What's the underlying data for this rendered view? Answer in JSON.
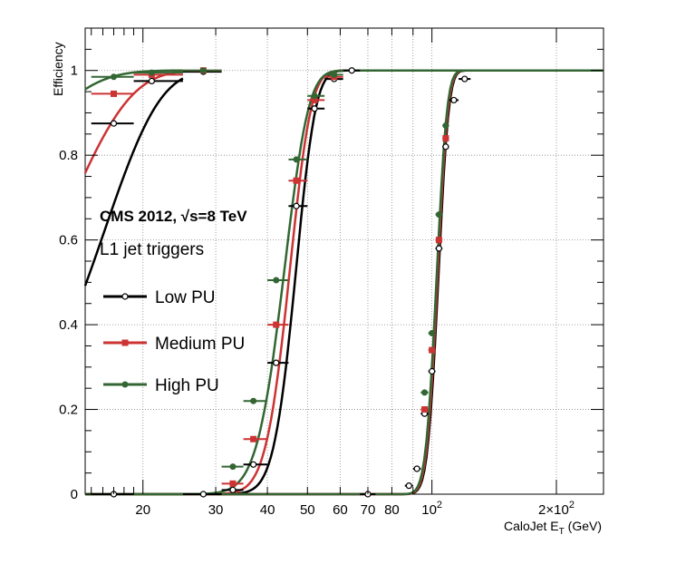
{
  "chart_data": {
    "type": "line",
    "xscale": "log",
    "xlim": [
      14.5,
      260
    ],
    "ylim": [
      0,
      1.1
    ],
    "grid": true,
    "legend_position": "left-center",
    "xlabel": "CaloJet E",
    "xlabel_sub": "T",
    "xlabel_unit": " (GeV)",
    "ylabel": "Efficiency",
    "experiment_label": "CMS 2012, √s=8 TeV",
    "annotation": "L1 jet triggers",
    "x_ticks": [
      {
        "value": 20,
        "label": "20"
      },
      {
        "value": 30,
        "label": "30"
      },
      {
        "value": 40,
        "label": "40"
      },
      {
        "value": 50,
        "label": "50"
      },
      {
        "value": 60,
        "label": "60"
      },
      {
        "value": 70,
        "label": "70"
      },
      {
        "value": 80,
        "label": "80"
      },
      {
        "value": 100,
        "label": "10",
        "sup": "2"
      },
      {
        "value": 200,
        "label": "2×10",
        "sup": "2"
      }
    ],
    "y_ticks": [
      {
        "value": 0,
        "label": "0"
      },
      {
        "value": 0.2,
        "label": "0.2"
      },
      {
        "value": 0.4,
        "label": "0.4"
      },
      {
        "value": 0.6,
        "label": "0.6"
      },
      {
        "value": 0.8,
        "label": "0.8"
      },
      {
        "value": 1,
        "label": "1"
      }
    ],
    "series": [
      {
        "name": "Low PU",
        "color": "#000000",
        "marker": "open-circle",
        "turn_on_curves": [
          {
            "a": 0.5,
            "mu": 14.6,
            "sigma": 5.0,
            "x_from": 14.5,
            "x_to": 25
          },
          {
            "a": 0.5,
            "mu": 46.6,
            "sigma": 4.3,
            "x_from": 14.5,
            "x_to": 260
          },
          {
            "a": 0.5,
            "mu": 103.5,
            "sigma": 4.8,
            "x_from": 14.5,
            "x_to": 260
          }
        ],
        "points": [
          {
            "x": 17,
            "y": 0.875,
            "xlo": 15,
            "xhi": 19
          },
          {
            "x": 21,
            "y": 0.975,
            "xlo": 19,
            "xhi": 25
          },
          {
            "x": 28,
            "y": 0.997,
            "xlo": 25,
            "xhi": 31
          },
          {
            "x": 17,
            "y": 0.0,
            "xlo": 15,
            "xhi": 19
          },
          {
            "x": 28,
            "y": 0.0,
            "xlo": 25,
            "xhi": 31
          },
          {
            "x": 33,
            "y": 0.01,
            "xlo": 31,
            "xhi": 35
          },
          {
            "x": 37,
            "y": 0.07,
            "xlo": 35,
            "xhi": 40
          },
          {
            "x": 42,
            "y": 0.31,
            "xlo": 40,
            "xhi": 45
          },
          {
            "x": 47,
            "y": 0.68,
            "xlo": 45,
            "xhi": 50
          },
          {
            "x": 52,
            "y": 0.91,
            "xlo": 50,
            "xhi": 55
          },
          {
            "x": 58,
            "y": 0.98,
            "xlo": 55,
            "xhi": 61
          },
          {
            "x": 64,
            "y": 1.0,
            "xlo": 61,
            "xhi": 67
          },
          {
            "x": 70,
            "y": 0.0,
            "xlo": 67,
            "xhi": 73
          },
          {
            "x": 88,
            "y": 0.02,
            "xlo": 86,
            "xhi": 90
          },
          {
            "x": 92,
            "y": 0.06,
            "xlo": 90,
            "xhi": 94
          },
          {
            "x": 96,
            "y": 0.19,
            "xlo": 94,
            "xhi": 98
          },
          {
            "x": 100,
            "y": 0.29,
            "xlo": 98,
            "xhi": 102
          },
          {
            "x": 104,
            "y": 0.58,
            "xlo": 102,
            "xhi": 106
          },
          {
            "x": 108,
            "y": 0.82,
            "xlo": 106,
            "xhi": 110
          },
          {
            "x": 113,
            "y": 0.93,
            "xlo": 110,
            "xhi": 116
          },
          {
            "x": 120,
            "y": 0.98,
            "xlo": 116,
            "xhi": 124
          }
        ]
      },
      {
        "name": "Medium PU",
        "color": "#cc3333",
        "marker": "filled-square",
        "turn_on_curves": [
          {
            "a": 0.5,
            "mu": 11.0,
            "sigma": 5.0,
            "x_from": 14.5,
            "x_to": 25
          },
          {
            "a": 0.5,
            "mu": 45.0,
            "sigma": 4.5,
            "x_from": 14.5,
            "x_to": 260
          },
          {
            "a": 0.5,
            "mu": 103.0,
            "sigma": 4.8,
            "x_from": 14.5,
            "x_to": 260
          }
        ],
        "points": [
          {
            "x": 17,
            "y": 0.945,
            "xlo": 15,
            "xhi": 19
          },
          {
            "x": 21,
            "y": 0.99,
            "xlo": 19,
            "xhi": 25
          },
          {
            "x": 28,
            "y": 1.0,
            "xlo": 25,
            "xhi": 31
          },
          {
            "x": 33,
            "y": 0.025,
            "xlo": 31,
            "xhi": 35
          },
          {
            "x": 37,
            "y": 0.13,
            "xlo": 35,
            "xhi": 40
          },
          {
            "x": 42,
            "y": 0.4,
            "xlo": 40,
            "xhi": 45
          },
          {
            "x": 47,
            "y": 0.74,
            "xlo": 45,
            "xhi": 50
          },
          {
            "x": 52,
            "y": 0.93,
            "xlo": 50,
            "xhi": 55
          },
          {
            "x": 58,
            "y": 0.985,
            "xlo": 55,
            "xhi": 61
          },
          {
            "x": 96,
            "y": 0.2,
            "xlo": 94,
            "xhi": 98
          },
          {
            "x": 100,
            "y": 0.34,
            "xlo": 98,
            "xhi": 102
          },
          {
            "x": 104,
            "y": 0.6,
            "xlo": 102,
            "xhi": 106
          },
          {
            "x": 108,
            "y": 0.84,
            "xlo": 106,
            "xhi": 110
          }
        ]
      },
      {
        "name": "High PU",
        "color": "#336633",
        "marker": "filled-circle",
        "turn_on_curves": [
          {
            "a": 0.5,
            "mu": 6.0,
            "sigma": 5.0,
            "x_from": 14.5,
            "x_to": 25
          },
          {
            "a": 0.5,
            "mu": 43.6,
            "sigma": 5.0,
            "x_from": 14.5,
            "x_to": 260
          },
          {
            "a": 0.5,
            "mu": 102.5,
            "sigma": 4.8,
            "x_from": 14.5,
            "x_to": 260
          }
        ],
        "points": [
          {
            "x": 17,
            "y": 0.985,
            "xlo": 15,
            "xhi": 19
          },
          {
            "x": 21,
            "y": 0.995,
            "xlo": 19,
            "xhi": 25
          },
          {
            "x": 28,
            "y": 1.0,
            "xlo": 25,
            "xhi": 31
          },
          {
            "x": 33,
            "y": 0.065,
            "xlo": 31,
            "xhi": 35
          },
          {
            "x": 37,
            "y": 0.22,
            "xlo": 35,
            "xhi": 40
          },
          {
            "x": 42,
            "y": 0.505,
            "xlo": 40,
            "xhi": 45
          },
          {
            "x": 47,
            "y": 0.79,
            "xlo": 45,
            "xhi": 50
          },
          {
            "x": 52,
            "y": 0.94,
            "xlo": 50,
            "xhi": 55
          },
          {
            "x": 58,
            "y": 0.99,
            "xlo": 55,
            "xhi": 61
          },
          {
            "x": 96,
            "y": 0.24,
            "xlo": 94,
            "xhi": 98
          },
          {
            "x": 100,
            "y": 0.38,
            "xlo": 98,
            "xhi": 102
          },
          {
            "x": 104,
            "y": 0.66,
            "xlo": 102,
            "xhi": 106
          },
          {
            "x": 108,
            "y": 0.87,
            "xlo": 106,
            "xhi": 110
          }
        ]
      }
    ]
  }
}
